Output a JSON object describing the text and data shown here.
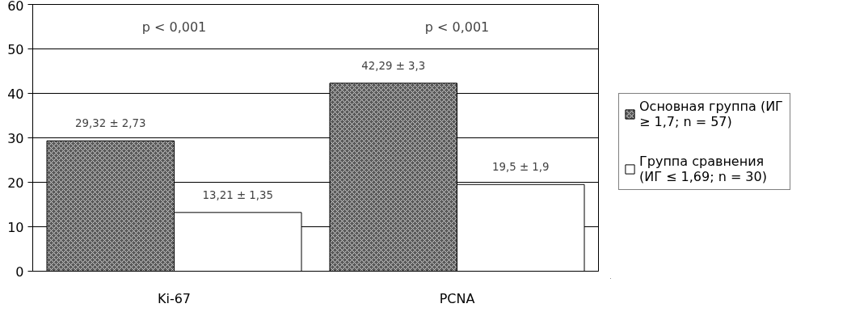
{
  "chart_data": {
    "type": "bar",
    "categories": [
      "Ki-67",
      "PCNA"
    ],
    "series": [
      {
        "name": "Основная группа (ИГ ≥ 1,7; n = 57)",
        "color": "#5a5a5a",
        "values": [
          29.32,
          42.29
        ],
        "value_labels": [
          "29,32 ± 2,73",
          "42,29 ± 3,3"
        ]
      },
      {
        "name": "Группа сравнения (ИГ ≤ 1,69; n = 30)",
        "color": "#ffffff",
        "values": [
          13.21,
          19.5
        ],
        "value_labels": [
          "13,21 ± 1,35",
          "19,5 ± 1,9"
        ]
      }
    ],
    "ylim": [
      0,
      60
    ],
    "yticks": [
      0,
      10,
      20,
      30,
      40,
      50,
      60
    ],
    "grid": "y",
    "legend": "right",
    "annotations": [
      "p < 0,001",
      "p < 0,001"
    ]
  }
}
